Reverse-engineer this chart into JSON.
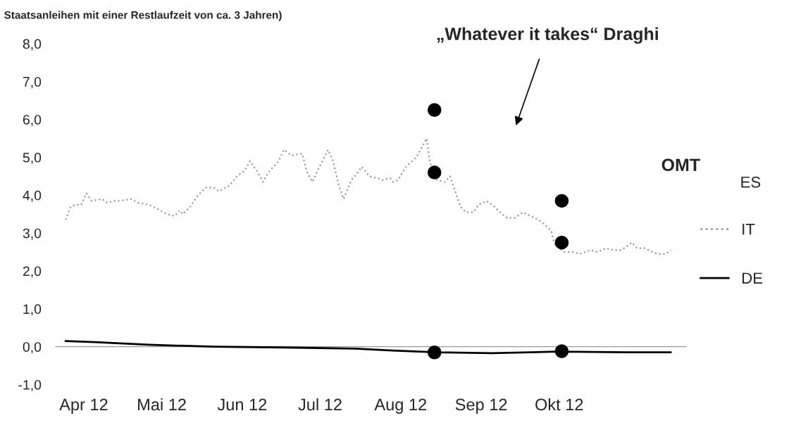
{
  "chart_data": {
    "type": "line",
    "subtitle": "Staatsanleihen mit einer Restlaufzeit von ca. 3 Jahren)",
    "xlim": [
      "2012-03-21",
      "2012-11-19"
    ],
    "xticks": [
      {
        "value": "2012-04-01",
        "label": "Apr 12"
      },
      {
        "value": "2012-05-01",
        "label": "Mai 12"
      },
      {
        "value": "2012-06-01",
        "label": "Jun 12"
      },
      {
        "value": "2012-07-01",
        "label": "Jul 12"
      },
      {
        "value": "2012-08-01",
        "label": "Aug 12"
      },
      {
        "value": "2012-09-01",
        "label": "Sep 12"
      },
      {
        "value": "2012-10-01",
        "label": "Okt 12"
      }
    ],
    "ylim": [
      -1,
      8
    ],
    "yticks": [
      {
        "value": -1,
        "label": "-1,0"
      },
      {
        "value": 0,
        "label": "0,0"
      },
      {
        "value": 1,
        "label": "1,0"
      },
      {
        "value": 2,
        "label": "2,0"
      },
      {
        "value": 3,
        "label": "3,0"
      },
      {
        "value": 4,
        "label": "4,0"
      },
      {
        "value": 5,
        "label": "5,0"
      },
      {
        "value": 6,
        "label": "6,0"
      },
      {
        "value": 7,
        "label": "7,0"
      },
      {
        "value": 8,
        "label": "8,0"
      }
    ],
    "grid": false,
    "legend": "right",
    "ref_lines": [
      {
        "axis": "y",
        "value": 0,
        "color": "#999999"
      }
    ],
    "series": [
      {
        "name": "IT",
        "color": "#9a9a9a",
        "line_style": "dotted",
        "x": [
          "2012-03-25",
          "2012-03-27",
          "2012-03-29",
          "2012-03-31",
          "2012-04-02",
          "2012-04-04",
          "2012-04-08",
          "2012-04-10",
          "2012-04-13",
          "2012-04-15",
          "2012-04-19",
          "2012-04-22",
          "2012-04-26",
          "2012-04-29",
          "2012-05-03",
          "2012-05-06",
          "2012-05-08",
          "2012-05-09",
          "2012-05-12",
          "2012-05-15",
          "2012-05-18",
          "2012-05-21",
          "2012-05-23",
          "2012-05-27",
          "2012-05-30",
          "2012-06-02",
          "2012-06-04",
          "2012-06-07",
          "2012-06-09",
          "2012-06-11",
          "2012-06-15",
          "2012-06-17",
          "2012-06-20",
          "2012-06-24",
          "2012-06-26",
          "2012-06-28",
          "2012-06-30",
          "2012-07-03",
          "2012-07-04",
          "2012-07-06",
          "2012-07-08",
          "2012-07-10",
          "2012-07-13",
          "2012-07-15",
          "2012-07-17",
          "2012-07-20",
          "2012-07-23",
          "2012-07-25",
          "2012-07-28",
          "2012-07-29",
          "2012-07-31",
          "2012-08-03",
          "2012-08-07",
          "2012-08-09",
          "2012-08-11",
          "2012-08-12",
          "2012-08-13",
          "2012-08-15",
          "2012-08-18",
          "2012-08-20",
          "2012-08-22",
          "2012-08-24",
          "2012-08-26",
          "2012-08-29",
          "2012-08-31",
          "2012-09-03",
          "2012-09-06",
          "2012-09-09",
          "2012-09-11",
          "2012-09-14",
          "2012-09-17",
          "2012-09-20",
          "2012-09-23",
          "2012-09-25",
          "2012-09-28",
          "2012-09-29",
          "2012-09-30",
          "2012-10-03",
          "2012-10-06",
          "2012-10-09",
          "2012-10-13",
          "2012-10-16",
          "2012-10-19",
          "2012-10-22",
          "2012-10-25",
          "2012-10-27",
          "2012-10-29",
          "2012-10-31",
          "2012-11-03",
          "2012-11-06",
          "2012-11-08",
          "2012-11-11",
          "2012-11-13"
        ],
        "values": [
          3.35,
          3.7,
          3.75,
          3.75,
          4.05,
          3.85,
          3.9,
          3.8,
          3.85,
          3.85,
          3.9,
          3.8,
          3.75,
          3.65,
          3.5,
          3.45,
          3.6,
          3.5,
          3.7,
          4.0,
          4.2,
          4.2,
          4.1,
          4.25,
          4.5,
          4.65,
          4.9,
          4.6,
          4.35,
          4.6,
          4.9,
          5.2,
          5.05,
          5.1,
          4.6,
          4.35,
          4.65,
          5.05,
          5.2,
          4.9,
          4.3,
          3.9,
          4.4,
          4.55,
          4.75,
          4.5,
          4.45,
          4.4,
          4.45,
          4.35,
          4.4,
          4.75,
          5.0,
          5.25,
          5.5,
          5.0,
          4.65,
          4.4,
          4.35,
          4.5,
          4.1,
          3.7,
          3.55,
          3.55,
          3.75,
          3.85,
          3.7,
          3.5,
          3.4,
          3.4,
          3.55,
          3.45,
          3.35,
          3.25,
          3.05,
          2.75,
          2.65,
          2.5,
          2.5,
          2.45,
          2.55,
          2.5,
          2.6,
          2.55,
          2.55,
          2.65,
          2.75,
          2.6,
          2.6,
          2.5,
          2.45,
          2.45,
          2.55
        ]
      },
      {
        "name": "DE",
        "color": "#000000",
        "line_style": "solid",
        "x": [
          "2012-03-25",
          "2012-04-05",
          "2012-04-26",
          "2012-05-21",
          "2012-06-17",
          "2012-07-14",
          "2012-07-29",
          "2012-08-15",
          "2012-09-05",
          "2012-09-30",
          "2012-10-27",
          "2012-11-13"
        ],
        "values": [
          0.15,
          0.12,
          0.05,
          0.0,
          -0.02,
          -0.05,
          -0.1,
          -0.15,
          -0.17,
          -0.13,
          -0.15,
          -0.15
        ]
      },
      {
        "type": "scatter",
        "color": "#000000",
        "marker": "circle",
        "x": [
          "2012-08-14",
          "2012-08-14",
          "2012-08-14",
          "2012-10-02",
          "2012-10-02",
          "2012-10-02"
        ],
        "values": [
          6.25,
          4.6,
          -0.15,
          3.85,
          2.75,
          -0.12
        ]
      }
    ],
    "annotations": [
      "„Whatever it takes“ Draghi",
      "OMT",
      "ES"
    ]
  }
}
